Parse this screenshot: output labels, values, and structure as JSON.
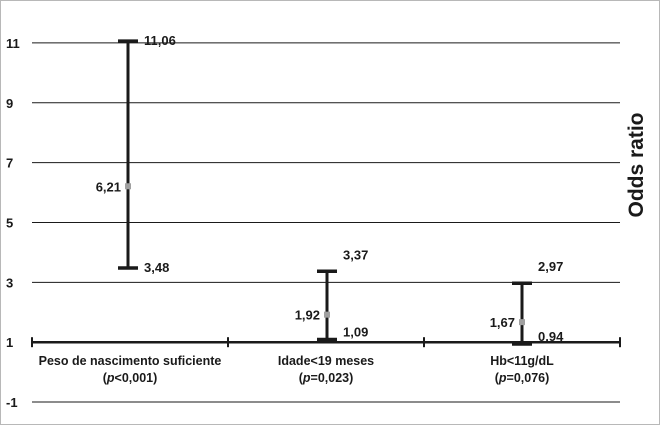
{
  "chart_data": {
    "type": "error-bar",
    "ylabel": "Odds ratio",
    "ylim": [
      -1.7,
      12.3
    ],
    "yticks": [
      -1,
      1,
      3,
      5,
      7,
      9,
      11
    ],
    "ytick_labels": [
      "-1",
      "1",
      "3",
      "5",
      "7",
      "9",
      "11"
    ],
    "grid": "horizontal",
    "categories": [
      {
        "name": "Peso de nascimento suficiente",
        "p_prefix": "(",
        "p_symbol": "p",
        "p_value": "<0,001)",
        "or": 6.21,
        "lower": 3.48,
        "upper": 11.06,
        "or_label": "6,21",
        "lower_label": "3,48",
        "upper_label": "11,06"
      },
      {
        "name": "Idade<19 meses",
        "p_prefix": "(",
        "p_symbol": "p",
        "p_value": "=0,023)",
        "or": 1.92,
        "lower": 1.09,
        "upper": 3.37,
        "or_label": "1,92",
        "lower_label": "1,09",
        "upper_label": "3,37"
      },
      {
        "name": "Hb<11g/dL",
        "p_prefix": "(",
        "p_symbol": "p",
        "p_value": "=0,076)",
        "or": 1.67,
        "lower": 0.94,
        "upper": 2.97,
        "or_label": "1,67",
        "lower_label": "0,94",
        "upper_label": "2,97"
      }
    ],
    "colors": {
      "bar": "#1a1a1a",
      "point": "#a0a0a0",
      "grid": "#1a1a1a"
    }
  }
}
